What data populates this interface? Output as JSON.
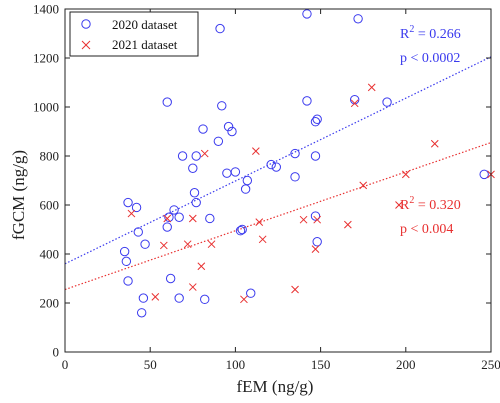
{
  "chart_data": {
    "type": "scatter",
    "xlabel": "fEM (ng/g)",
    "ylabel": "fGCM (ng/g)",
    "xlim": [
      0,
      250
    ],
    "ylim": [
      0,
      1400
    ],
    "xticks": [
      0,
      50,
      100,
      150,
      200,
      250
    ],
    "yticks": [
      0,
      200,
      400,
      600,
      800,
      1000,
      1200,
      1400
    ],
    "grid": false,
    "legend_position": "top-left",
    "series": [
      {
        "name": "2020 dataset",
        "marker": "circle",
        "color": "#3a3aee",
        "points": [
          [
            35,
            410
          ],
          [
            36,
            370
          ],
          [
            37,
            610
          ],
          [
            37,
            290
          ],
          [
            42,
            590
          ],
          [
            43,
            490
          ],
          [
            45,
            160
          ],
          [
            46,
            220
          ],
          [
            47,
            440
          ],
          [
            60,
            1020
          ],
          [
            60,
            510
          ],
          [
            61,
            550
          ],
          [
            62,
            300
          ],
          [
            64,
            580
          ],
          [
            67,
            220
          ],
          [
            67,
            550
          ],
          [
            69,
            800
          ],
          [
            75,
            750
          ],
          [
            76,
            650
          ],
          [
            77,
            800
          ],
          [
            77,
            610
          ],
          [
            81,
            910
          ],
          [
            82,
            215
          ],
          [
            85,
            545
          ],
          [
            90,
            860
          ],
          [
            91,
            1320
          ],
          [
            92,
            1005
          ],
          [
            95,
            730
          ],
          [
            96,
            920
          ],
          [
            98,
            900
          ],
          [
            100,
            735
          ],
          [
            103,
            495
          ],
          [
            104,
            500
          ],
          [
            106,
            665
          ],
          [
            107,
            700
          ],
          [
            109,
            240
          ],
          [
            121,
            765
          ],
          [
            124,
            755
          ],
          [
            135,
            810
          ],
          [
            135,
            715
          ],
          [
            142,
            1380
          ],
          [
            142,
            1025
          ],
          [
            147,
            800
          ],
          [
            147,
            555
          ],
          [
            147,
            940
          ],
          [
            148,
            950
          ],
          [
            148,
            450
          ],
          [
            170,
            1030
          ],
          [
            172,
            1360
          ],
          [
            189,
            1020
          ],
          [
            246,
            725
          ]
        ]
      },
      {
        "name": "2021 dataset",
        "marker": "x",
        "color": "#e83030",
        "points": [
          [
            39,
            565
          ],
          [
            53,
            225
          ],
          [
            58,
            435
          ],
          [
            60,
            545
          ],
          [
            72,
            440
          ],
          [
            75,
            545
          ],
          [
            75,
            265
          ],
          [
            80,
            350
          ],
          [
            82,
            810
          ],
          [
            86,
            440
          ],
          [
            105,
            215
          ],
          [
            112,
            820
          ],
          [
            114,
            530
          ],
          [
            116,
            460
          ],
          [
            135,
            255
          ],
          [
            140,
            540
          ],
          [
            147,
            420
          ],
          [
            148,
            540
          ],
          [
            166,
            520
          ],
          [
            170,
            1015
          ],
          [
            175,
            680
          ],
          [
            180,
            1080
          ],
          [
            196,
            600
          ],
          [
            200,
            725
          ],
          [
            217,
            850
          ],
          [
            250,
            725
          ]
        ]
      }
    ],
    "fit_lines": [
      {
        "series": "2020 dataset",
        "x": [
          0,
          250
        ],
        "y": [
          360,
          1205
        ],
        "style": "dotted",
        "color": "#3a3aee"
      },
      {
        "series": "2021 dataset",
        "x": [
          0,
          250
        ],
        "y": [
          255,
          855
        ],
        "style": "dotted",
        "color": "#e83030"
      }
    ],
    "annotations": [
      {
        "series": "2020 dataset",
        "r2_label": "R",
        "r2_sup": "2",
        "r2_value": " = 0.266",
        "p_text": "p < 0.0002",
        "color": "#3a3aee"
      },
      {
        "series": "2021 dataset",
        "r2_label": "R",
        "r2_sup": "2",
        "r2_value": " = 0.320",
        "p_text": "p < 0.004",
        "color": "#e83030"
      }
    ]
  }
}
